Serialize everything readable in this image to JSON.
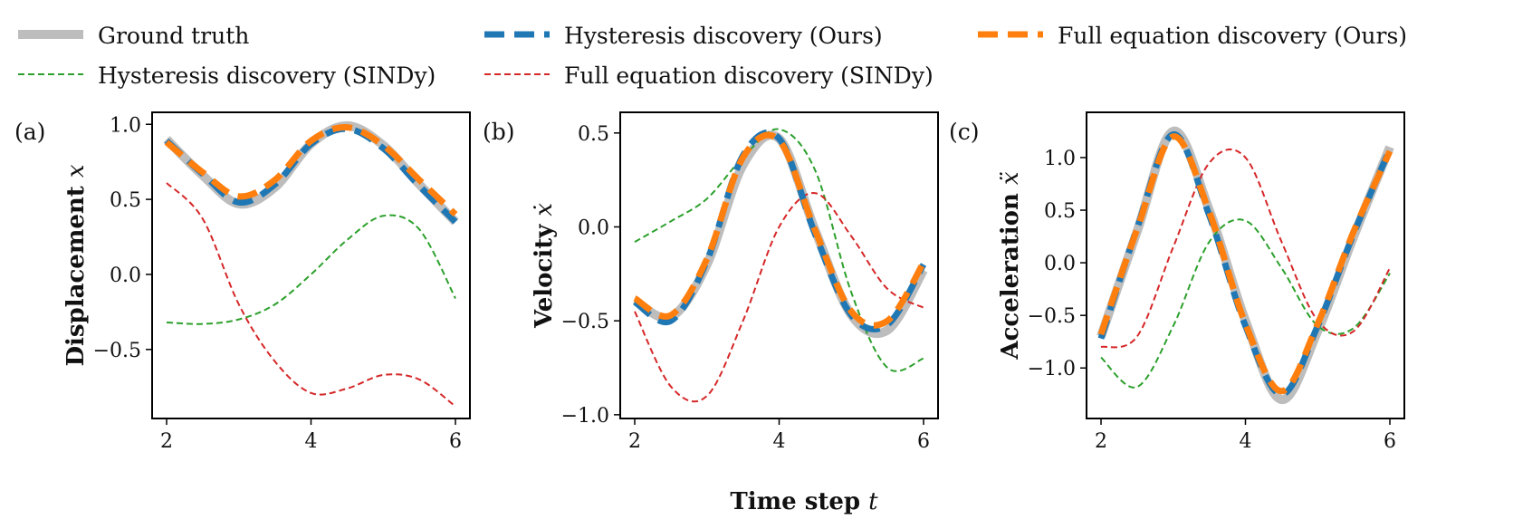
{
  "chart_data": {
    "type": "line",
    "xlabel": "Time step",
    "xlabel_var": "t",
    "xlim": [
      2,
      6
    ],
    "xticks": [
      2,
      4,
      6
    ],
    "legend": [
      {
        "name": "Ground truth",
        "color": "#bdbdbd",
        "style": "solid-thick"
      },
      {
        "name": "Hysteresis discovery (Ours)",
        "color": "#1f77b4",
        "style": "dashed-thick"
      },
      {
        "name": "Full equation discovery (Ours)",
        "color": "#ff7f0e",
        "style": "dashed-thick"
      },
      {
        "name": "Hysteresis discovery (SINDy)",
        "color": "#2ca02c",
        "style": "dashed-thin"
      },
      {
        "name": "Full equation discovery (SINDy)",
        "color": "#d62728",
        "style": "dashed-thin"
      }
    ],
    "panels": [
      {
        "label": "(a)",
        "ylabel": "Displacement",
        "ylabel_var": "x",
        "ylim": [
          -0.96,
          1.08
        ],
        "yticks": [
          1.0,
          0.5,
          0.0,
          -0.5
        ],
        "ytick_labels": [
          "1.0",
          "0.5",
          "0.0",
          "−0.5"
        ],
        "x": [
          2.0,
          2.5,
          3.0,
          3.5,
          4.0,
          4.5,
          5.0,
          5.5,
          6.0
        ],
        "series": [
          {
            "name": "Ground truth",
            "values": [
              0.9,
              0.66,
              0.47,
              0.58,
              0.87,
              0.99,
              0.86,
              0.6,
              0.35
            ]
          },
          {
            "name": "Hysteresis discovery (Ours)",
            "values": [
              0.89,
              0.67,
              0.48,
              0.6,
              0.87,
              0.97,
              0.84,
              0.59,
              0.35
            ]
          },
          {
            "name": "Full equation discovery (Ours)",
            "values": [
              0.88,
              0.68,
              0.52,
              0.63,
              0.89,
              0.98,
              0.86,
              0.63,
              0.4
            ]
          },
          {
            "name": "Hysteresis discovery (SINDy)",
            "values": [
              -0.32,
              -0.33,
              -0.3,
              -0.2,
              0.0,
              0.23,
              0.39,
              0.3,
              -0.16
            ]
          },
          {
            "name": "Full equation discovery (SINDy)",
            "values": [
              0.61,
              0.37,
              -0.2,
              -0.58,
              -0.79,
              -0.76,
              -0.67,
              -0.7,
              -0.88
            ]
          }
        ]
      },
      {
        "label": "(b)",
        "ylabel": "Velocity",
        "ylabel_var": "ẋ",
        "ylim": [
          -1.02,
          0.61
        ],
        "yticks": [
          0.5,
          0.0,
          -0.5,
          -1.0
        ],
        "ytick_labels": [
          "0.5",
          "0.0",
          "−0.5",
          "−1.0"
        ],
        "x": [
          2.0,
          2.5,
          3.0,
          3.5,
          4.0,
          4.5,
          5.0,
          5.5,
          6.0
        ],
        "series": [
          {
            "name": "Ground truth",
            "values": [
              -0.39,
              -0.48,
              -0.2,
              0.33,
              0.47,
              -0.02,
              -0.47,
              -0.55,
              -0.23
            ]
          },
          {
            "name": "Hysteresis discovery (Ours)",
            "values": [
              -0.4,
              -0.5,
              -0.18,
              0.38,
              0.47,
              -0.04,
              -0.47,
              -0.52,
              -0.2
            ]
          },
          {
            "name": "Full equation discovery (Ours)",
            "values": [
              -0.38,
              -0.47,
              -0.17,
              0.37,
              0.46,
              -0.02,
              -0.45,
              -0.5,
              -0.19
            ]
          },
          {
            "name": "Hysteresis discovery (SINDy)",
            "values": [
              -0.08,
              0.03,
              0.15,
              0.37,
              0.52,
              0.3,
              -0.35,
              -0.75,
              -0.7
            ]
          },
          {
            "name": "Full equation discovery (SINDy)",
            "values": [
              -0.45,
              -0.85,
              -0.9,
              -0.5,
              0.0,
              0.18,
              -0.05,
              -0.33,
              -0.43
            ]
          }
        ]
      },
      {
        "label": "(c)",
        "ylabel": "Acceleration",
        "ylabel_var": "ẍ",
        "ylim": [
          -1.48,
          1.43
        ],
        "yticks": [
          1.0,
          0.5,
          0.0,
          -0.5,
          -1.0
        ],
        "ytick_labels": [
          "1.0",
          "0.5",
          "0.0",
          "−0.5",
          "−1.0"
        ],
        "x": [
          2.0,
          2.5,
          3.0,
          3.5,
          4.0,
          4.5,
          5.0,
          5.5,
          6.0
        ],
        "series": [
          {
            "name": "Ground truth",
            "values": [
              -0.7,
              0.3,
              1.25,
              0.5,
              -0.55,
              -1.3,
              -0.65,
              0.25,
              1.1
            ]
          },
          {
            "name": "Hysteresis discovery (Ours)",
            "values": [
              -0.72,
              0.33,
              1.22,
              0.45,
              -0.6,
              -1.25,
              -0.6,
              0.28,
              1.08
            ]
          },
          {
            "name": "Full equation discovery (Ours)",
            "values": [
              -0.68,
              0.32,
              1.2,
              0.48,
              -0.58,
              -1.22,
              -0.58,
              0.3,
              1.06
            ]
          },
          {
            "name": "Hysteresis discovery (SINDy)",
            "values": [
              -0.9,
              -1.18,
              -0.6,
              0.2,
              0.4,
              -0.05,
              -0.6,
              -0.62,
              -0.1
            ]
          },
          {
            "name": "Full equation discovery (SINDy)",
            "values": [
              -0.8,
              -0.7,
              0.15,
              0.95,
              1.0,
              0.2,
              -0.55,
              -0.65,
              -0.05
            ]
          }
        ]
      }
    ]
  }
}
